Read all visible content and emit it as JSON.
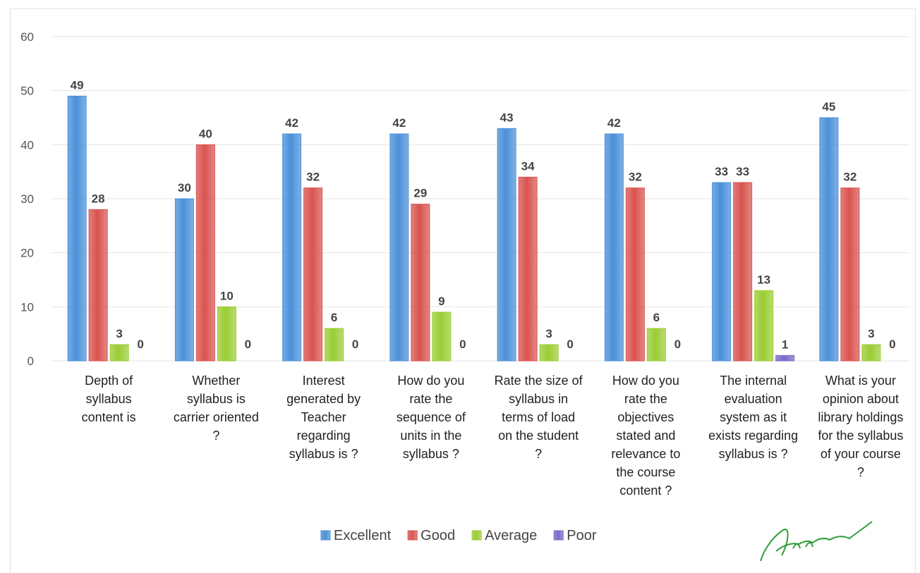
{
  "chart_data": {
    "type": "bar",
    "title": "",
    "xlabel": "",
    "ylabel": "",
    "ylim": [
      0,
      60
    ],
    "yticks": [
      0,
      10,
      20,
      30,
      40,
      50,
      60
    ],
    "grid": true,
    "legend_position": "bottom",
    "categories": [
      [
        "Depth of",
        "syllabus",
        "content is"
      ],
      [
        "Whether",
        "syllabus is",
        "carrier oriented",
        "?"
      ],
      [
        "Interest",
        "generated by",
        "Teacher",
        "regarding",
        "syllabus is ?"
      ],
      [
        "How do you",
        "rate the",
        "sequence of",
        "units in the",
        "syllabus ?"
      ],
      [
        "Rate the size of",
        "syllabus in",
        "terms of load",
        "on the student",
        "?"
      ],
      [
        "How do you",
        "rate the",
        "objectives",
        "stated and",
        "relevance to",
        "the course",
        "content ?"
      ],
      [
        "The internal",
        "evaluation",
        "system as it",
        "exists regarding",
        "syllabus is ?"
      ],
      [
        "What is your",
        "opinion about",
        "library holdings",
        "for the syllabus",
        "of your course",
        "?"
      ]
    ],
    "series": [
      {
        "name": "Excellent",
        "color": "#4a90d9",
        "values": [
          49,
          30,
          42,
          42,
          43,
          42,
          33,
          45
        ]
      },
      {
        "name": "Good",
        "color": "#d9534f",
        "values": [
          28,
          40,
          32,
          29,
          34,
          32,
          33,
          32
        ]
      },
      {
        "name": "Average",
        "color": "#9acd32",
        "values": [
          3,
          10,
          6,
          9,
          3,
          6,
          13,
          3
        ]
      },
      {
        "name": "Poor",
        "color": "#7b68c9",
        "values": [
          0,
          0,
          0,
          0,
          0,
          0,
          1,
          0
        ]
      }
    ]
  }
}
